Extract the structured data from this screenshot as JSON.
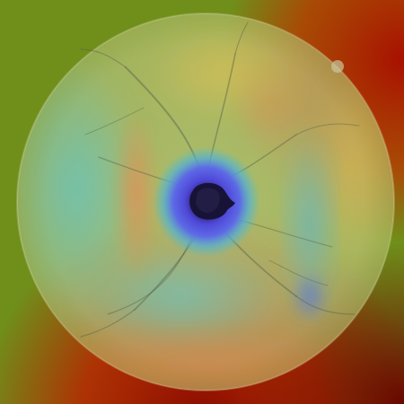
{
  "image": {
    "kind": "retinal fundus photograph with saliency heatmap overlay",
    "colors": {
      "background_green": "#6f8f1a",
      "heat_red": "#b01a00",
      "heat_dark_red": "#7a0a00",
      "heat_orange": "#d97a10",
      "heat_yellow": "#c9b81f",
      "heat_cyan": "#3bb4b0",
      "heat_teal": "#2fa6a8",
      "heat_blue": "#3a4fd8",
      "heat_violet": "#5a40c8",
      "optic_disc_dark": "#161236",
      "fundus_wash": "#e8e4c8"
    }
  }
}
